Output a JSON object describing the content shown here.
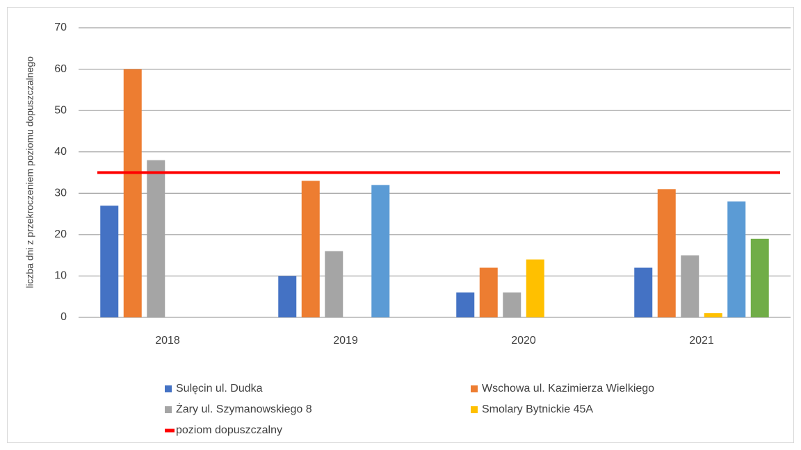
{
  "chart_data": {
    "type": "bar",
    "y_axis_label": "liczba dni z przekroczeniem poziomu dopuszczalnego",
    "categories": [
      "2018",
      "2019",
      "2020",
      "2021"
    ],
    "series": [
      {
        "name": "Sulęcin ul. Dudka",
        "color": "#4472c4",
        "values": [
          27,
          10,
          6,
          12
        ]
      },
      {
        "name": "Wschowa ul. Kazimierza Wielkiego",
        "color": "#ed7d31",
        "values": [
          60,
          33,
          12,
          31
        ]
      },
      {
        "name": "Żary ul. Szymanowskiego 8",
        "color": "#a5a5a5",
        "values": [
          38,
          16,
          6,
          15
        ]
      },
      {
        "name": "Smolary Bytnickie 45A",
        "color": "#ffc000",
        "values": [
          null,
          null,
          14,
          1
        ]
      },
      {
        "color": "#5b9bd5",
        "values": [
          null,
          32,
          null,
          28
        ]
      },
      {
        "color": "#70ad47",
        "values": [
          null,
          null,
          null,
          19
        ]
      }
    ],
    "threshold": {
      "name": "poziom dopuszczalny",
      "value": 35,
      "color": "#ff0000"
    },
    "ylim": [
      0,
      70
    ],
    "yticks": [
      0,
      10,
      20,
      30,
      40,
      50,
      60,
      70
    ],
    "grid": true
  }
}
